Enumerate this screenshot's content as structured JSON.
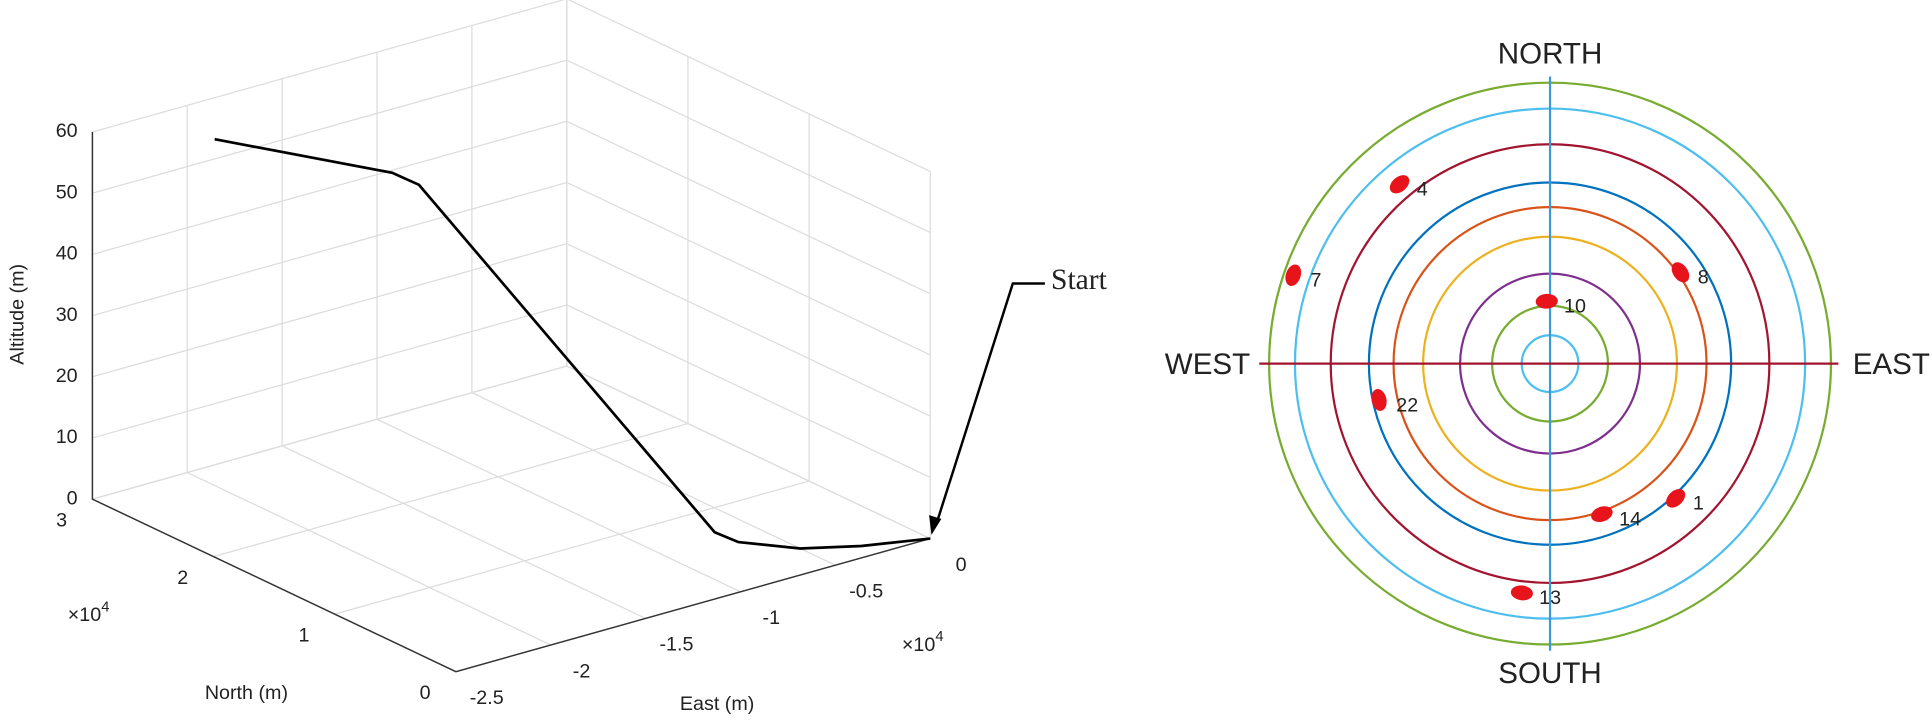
{
  "chart_data": [
    {
      "type": "line3d",
      "xlabel": "East (m)",
      "ylabel": "North (m)",
      "zlabel": "Altitude (m)",
      "x_multiplier_base": "×10",
      "x_multiplier_exp": "4",
      "y_multiplier_base": "×10",
      "y_multiplier_exp": "4",
      "annotation": "Start",
      "x": [
        0,
        -0.28,
        -0.5,
        -0.66,
        -0.67,
        -1.36,
        -1.45,
        -2.06
      ],
      "y": [
        0,
        0.13,
        0.29,
        0.55,
        0.73,
        2.09,
        2.17,
        2.68
      ],
      "z": [
        0,
        0,
        0,
        0,
        0,
        50,
        52,
        58
      ],
      "color": "#000000",
      "xlim": [
        -2.5,
        0
      ],
      "ylim": [
        0,
        3
      ],
      "zlim": [
        0,
        60
      ],
      "xticks": [
        -2.5,
        -2,
        -1.5,
        -1,
        -0.5,
        0
      ],
      "yticks": [
        0,
        1,
        2,
        3
      ],
      "zticks": [
        0,
        10,
        20,
        30,
        40,
        50,
        60
      ],
      "grid": true
    },
    {
      "type": "skyplot",
      "north": "NORTH",
      "south": "SOUTH",
      "east": "EAST",
      "west": "WEST",
      "categories": [
        "4",
        "8",
        "10",
        "7",
        "22",
        "14",
        "1",
        "13"
      ],
      "azimuth": [
        320,
        55,
        357,
        289,
        258,
        161,
        137,
        187
      ],
      "elevation": [
        15,
        39,
        70,
        3,
        34,
        39,
        31,
        16
      ],
      "rlim": [
        90,
        0
      ],
      "color": "#e8141c"
    }
  ]
}
